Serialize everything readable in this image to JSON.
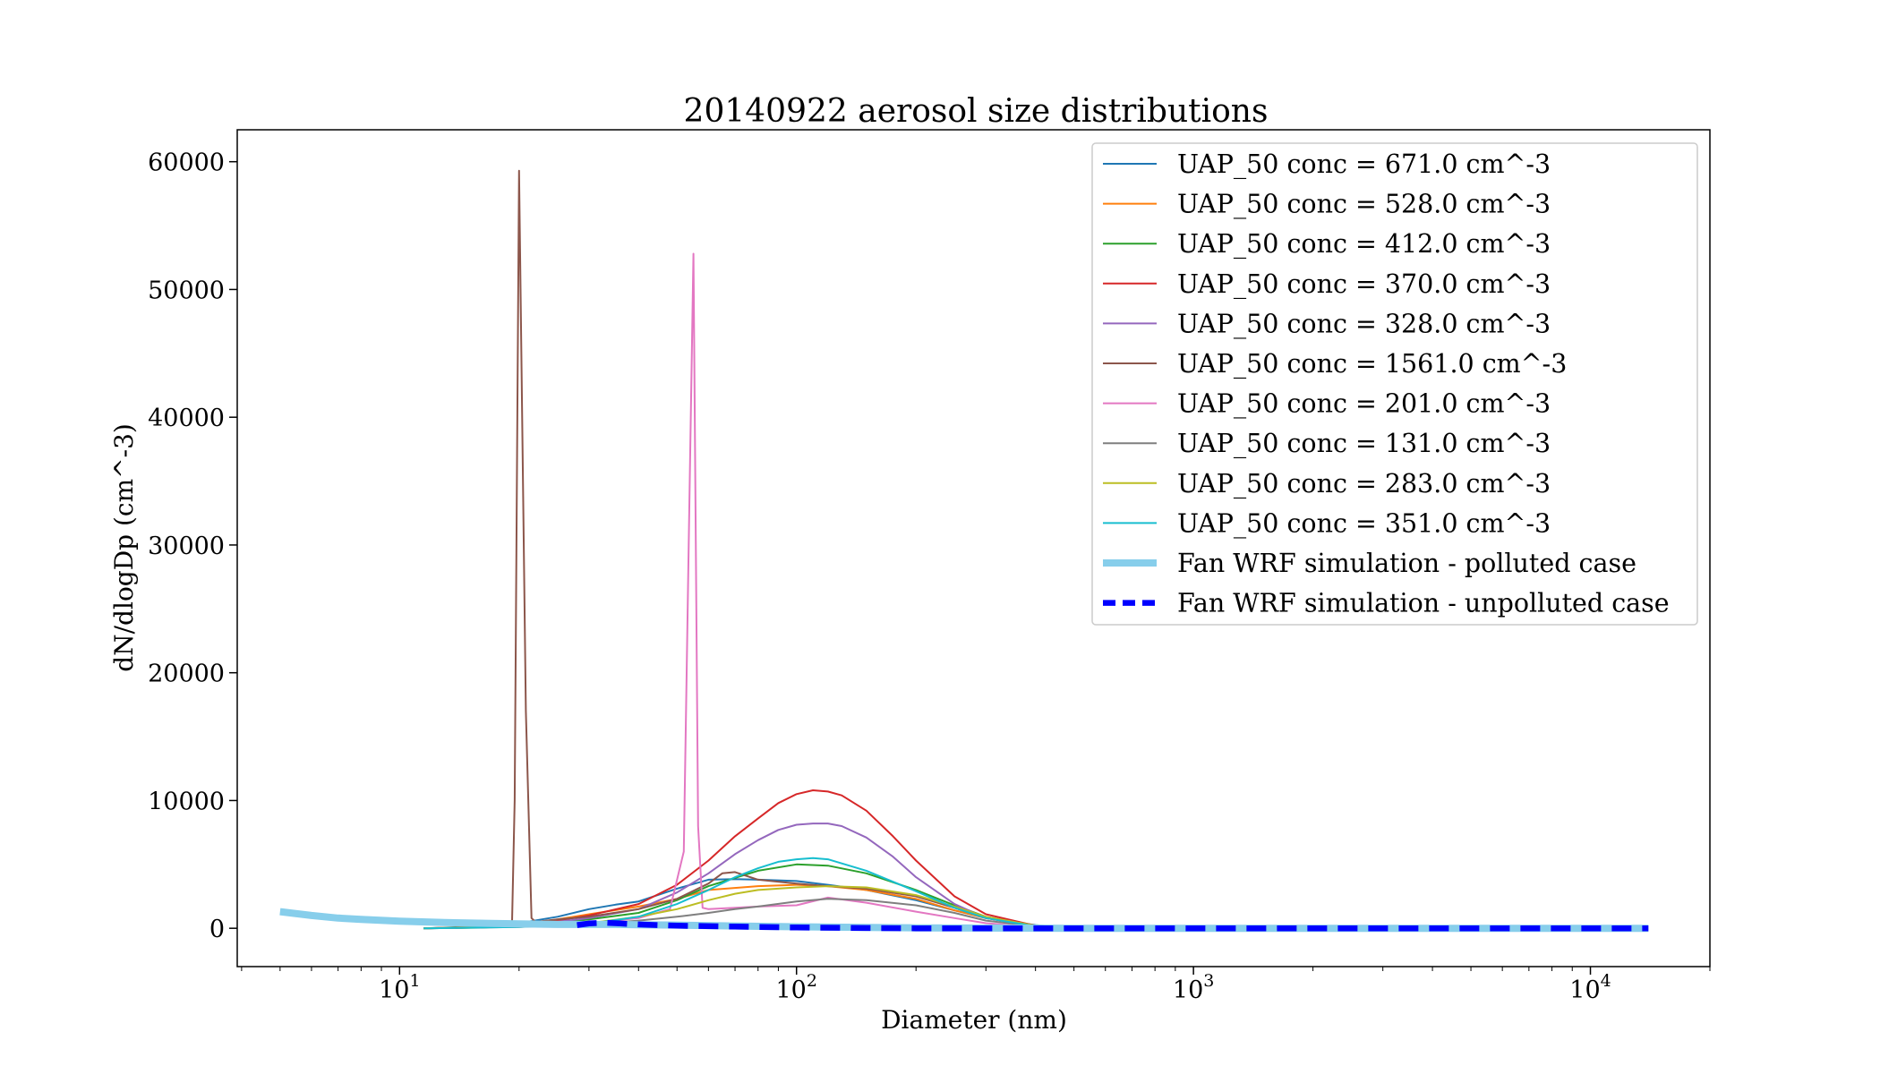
{
  "chart_data": {
    "type": "line",
    "title": "20140922 aerosol size distributions",
    "xlabel": "Diameter (nm)",
    "ylabel": "dN/dlogDp (cm^-3)",
    "x_scale": "log",
    "xlim": [
      3.9,
      20000
    ],
    "ylim": [
      -3000,
      62500
    ],
    "x_ticks": [
      {
        "base": "10",
        "exp": "1",
        "value": 10
      },
      {
        "base": "10",
        "exp": "2",
        "value": 100
      },
      {
        "base": "10",
        "exp": "3",
        "value": 1000
      },
      {
        "base": "10",
        "exp": "4",
        "value": 10000
      }
    ],
    "y_ticks": [
      {
        "label": "0",
        "value": 0
      },
      {
        "label": "10000",
        "value": 10000
      },
      {
        "label": "20000",
        "value": 20000
      },
      {
        "label": "30000",
        "value": 30000
      },
      {
        "label": "40000",
        "value": 40000
      },
      {
        "label": "50000",
        "value": 50000
      },
      {
        "label": "60000",
        "value": 60000
      }
    ],
    "grid": false,
    "legend_position": "top-right",
    "series": [
      {
        "name": "UAP_50 conc = 671.0 cm^-3",
        "color": "#1f77b4",
        "width": 2,
        "x": [
          11.5,
          16,
          20,
          25,
          30,
          35,
          40,
          50,
          60,
          70,
          80,
          100,
          120,
          150,
          200,
          250,
          300,
          400,
          500
        ],
        "y": [
          0,
          150,
          400,
          900,
          1500,
          1850,
          2100,
          3100,
          3800,
          3850,
          3800,
          3700,
          3400,
          3000,
          2200,
          1400,
          800,
          250,
          0
        ]
      },
      {
        "name": "UAP_50 conc = 528.0 cm^-3",
        "color": "#ff7f0e",
        "width": 2,
        "x": [
          11.5,
          16,
          20,
          25,
          30,
          40,
          50,
          60,
          80,
          100,
          120,
          150,
          200,
          250,
          300,
          400,
          500
        ],
        "y": [
          0,
          100,
          300,
          700,
          1100,
          1700,
          2300,
          3000,
          3300,
          3400,
          3300,
          3000,
          2300,
          1400,
          800,
          200,
          0
        ]
      },
      {
        "name": "UAP_50 conc = 412.0 cm^-3",
        "color": "#2ca02c",
        "width": 2,
        "x": [
          11.5,
          16,
          20,
          25,
          30,
          40,
          50,
          60,
          80,
          100,
          120,
          150,
          200,
          250,
          300,
          400,
          500
        ],
        "y": [
          0,
          50,
          200,
          400,
          700,
          1200,
          2200,
          3300,
          4500,
          5000,
          4900,
          4300,
          3000,
          1800,
          900,
          200,
          0
        ]
      },
      {
        "name": "UAP_50 conc = 370.0 cm^-3",
        "color": "#d62728",
        "width": 2,
        "x": [
          11.5,
          16,
          20,
          25,
          30,
          40,
          50,
          60,
          70,
          80,
          90,
          100,
          110,
          120,
          130,
          150,
          175,
          200,
          250,
          300,
          400,
          500
        ],
        "y": [
          0,
          80,
          300,
          600,
          1000,
          1900,
          3400,
          5300,
          7200,
          8600,
          9800,
          10500,
          10800,
          10700,
          10400,
          9200,
          7200,
          5300,
          2500,
          1100,
          200,
          0
        ]
      },
      {
        "name": "UAP_50 conc = 328.0 cm^-3",
        "color": "#9467bd",
        "width": 2,
        "x": [
          11.5,
          16,
          20,
          25,
          30,
          40,
          50,
          60,
          70,
          80,
          90,
          100,
          110,
          120,
          130,
          150,
          175,
          200,
          250,
          300,
          400,
          500
        ],
        "y": [
          0,
          70,
          250,
          500,
          800,
          1500,
          2800,
          4300,
          5800,
          6900,
          7700,
          8100,
          8200,
          8200,
          8000,
          7100,
          5600,
          4000,
          1900,
          800,
          150,
          0
        ]
      },
      {
        "name": "UAP_50 conc = 1561.0 cm^-3",
        "color": "#8c564b",
        "width": 2,
        "x": [
          11.5,
          16,
          19.2,
          19.5,
          20,
          20.8,
          21.5,
          22,
          25,
          30,
          40,
          50,
          60,
          65,
          70,
          80,
          100,
          120,
          150,
          200,
          250,
          300,
          400,
          500
        ],
        "y": [
          0,
          100,
          200,
          10000,
          59300,
          17000,
          800,
          500,
          700,
          900,
          1500,
          2300,
          3500,
          4300,
          4400,
          3800,
          3500,
          3300,
          3100,
          2500,
          1600,
          800,
          200,
          0
        ]
      },
      {
        "name": "UAP_50 conc = 201.0 cm^-3",
        "color": "#e377c2",
        "width": 2,
        "x": [
          11.5,
          20,
          30,
          40,
          48,
          52,
          53.5,
          55,
          56.5,
          58,
          60,
          70,
          80,
          100,
          120,
          150,
          200,
          250,
          300,
          400,
          500
        ],
        "y": [
          0,
          150,
          400,
          800,
          1500,
          6000,
          30000,
          52800,
          8000,
          1600,
          1500,
          1600,
          1700,
          1800,
          2400,
          2000,
          1300,
          800,
          400,
          100,
          0
        ]
      },
      {
        "name": "UAP_50 conc = 131.0 cm^-3",
        "color": "#7f7f7f",
        "width": 2,
        "x": [
          11.5,
          20,
          30,
          40,
          50,
          60,
          70,
          80,
          100,
          120,
          150,
          200,
          250,
          300,
          400,
          500
        ],
        "y": [
          0,
          100,
          300,
          600,
          900,
          1200,
          1500,
          1700,
          2100,
          2300,
          2200,
          1800,
          1200,
          600,
          150,
          0
        ]
      },
      {
        "name": "UAP_50 conc = 283.0 cm^-3",
        "color": "#bcbd22",
        "width": 2,
        "x": [
          11.5,
          20,
          30,
          40,
          50,
          60,
          70,
          80,
          100,
          120,
          150,
          200,
          250,
          300,
          400,
          500
        ],
        "y": [
          0,
          150,
          400,
          900,
          1500,
          2200,
          2700,
          3000,
          3200,
          3300,
          3200,
          2600,
          1700,
          900,
          200,
          0
        ]
      },
      {
        "name": "UAP_50 conc = 351.0 cm^-3",
        "color": "#17becf",
        "width": 2,
        "x": [
          11.5,
          20,
          30,
          40,
          50,
          60,
          70,
          80,
          90,
          100,
          110,
          120,
          150,
          200,
          250,
          300,
          400,
          500
        ],
        "y": [
          0,
          100,
          350,
          900,
          1900,
          3000,
          4000,
          4700,
          5200,
          5400,
          5500,
          5400,
          4500,
          2900,
          1600,
          800,
          150,
          0
        ]
      },
      {
        "name": "Fan WRF simulation - polluted case",
        "color": "#87ceeb",
        "width": 8,
        "x": [
          5,
          6,
          7,
          8,
          10,
          13,
          17,
          20,
          25,
          30,
          35,
          40,
          50,
          70,
          100,
          150,
          200,
          500,
          1000,
          5000,
          14000
        ],
        "y": [
          1300,
          1000,
          800,
          700,
          550,
          450,
          380,
          350,
          300,
          300,
          300,
          280,
          250,
          180,
          120,
          60,
          30,
          0,
          0,
          0,
          0
        ]
      },
      {
        "name": "Fan WRF simulation - unpolluted case",
        "color": "#0000ff",
        "width": 6.5,
        "dash": "22 12",
        "x": [
          28,
          30,
          33,
          36,
          40,
          50,
          70,
          100,
          150,
          200,
          500,
          1000,
          5000,
          14000
        ],
        "y": [
          250,
          380,
          430,
          380,
          300,
          200,
          130,
          60,
          20,
          0,
          0,
          0,
          0,
          0
        ]
      }
    ]
  }
}
